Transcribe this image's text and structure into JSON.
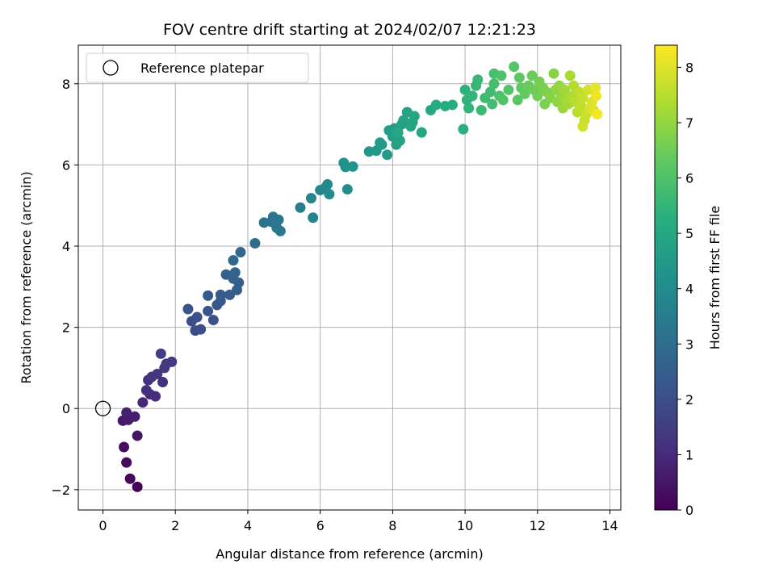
{
  "chart_data": {
    "type": "scatter",
    "title": "FOV centre drift starting at 2024/02/07 12:21:23",
    "xlabel": "Angular distance from reference (arcmin)",
    "ylabel": "Rotation from reference (arcmin)",
    "xlim": [
      -0.68,
      14.3
    ],
    "ylim": [
      -2.5,
      8.95
    ],
    "xticks": [
      0,
      2,
      4,
      6,
      8,
      10,
      12,
      14
    ],
    "yticks": [
      -2,
      0,
      2,
      4,
      6,
      8
    ],
    "xtick_labels": [
      "0",
      "2",
      "4",
      "6",
      "8",
      "10",
      "12",
      "14"
    ],
    "ytick_labels": [
      "−2",
      "0",
      "2",
      "4",
      "6",
      "8"
    ],
    "grid": true,
    "legend": {
      "placement": "top-left",
      "entries": [
        {
          "label": "Reference platepar",
          "marker": "open-circle",
          "color": "#000000"
        }
      ]
    },
    "reference_point": {
      "label": "Reference platepar",
      "x": 0.0,
      "y": 0.0
    },
    "colorbar": {
      "label": "Hours from first FF file",
      "colormap": "viridis",
      "min": 0,
      "max": 8.4,
      "ticks": [
        0,
        1,
        2,
        3,
        4,
        5,
        6,
        7,
        8
      ],
      "tick_labels": [
        "0",
        "1",
        "2",
        "3",
        "4",
        "5",
        "6",
        "7",
        "8"
      ]
    },
    "series": [
      {
        "columns": [
          "x",
          "y",
          "hours"
        ],
        "points": [
          [
            0.95,
            -1.93,
            0.05
          ],
          [
            0.75,
            -1.73,
            0.15
          ],
          [
            0.65,
            -1.33,
            0.25
          ],
          [
            0.58,
            -0.95,
            0.35
          ],
          [
            0.95,
            -0.67,
            0.45
          ],
          [
            0.55,
            -0.3,
            0.55
          ],
          [
            0.7,
            -0.28,
            0.65
          ],
          [
            0.88,
            -0.2,
            0.72
          ],
          [
            0.65,
            -0.1,
            0.8
          ],
          [
            1.1,
            0.15,
            0.9
          ],
          [
            1.3,
            0.35,
            1.0
          ],
          [
            1.45,
            0.3,
            1.05
          ],
          [
            1.2,
            0.45,
            1.1
          ],
          [
            1.65,
            0.65,
            1.15
          ],
          [
            1.25,
            0.7,
            1.2
          ],
          [
            1.35,
            0.78,
            1.25
          ],
          [
            1.5,
            0.85,
            1.3
          ],
          [
            1.7,
            1.0,
            1.35
          ],
          [
            1.75,
            1.1,
            1.4
          ],
          [
            1.9,
            1.15,
            1.45
          ],
          [
            1.6,
            1.35,
            1.5
          ],
          [
            2.55,
            1.92,
            1.9
          ],
          [
            2.7,
            1.95,
            1.95
          ],
          [
            2.45,
            2.15,
            2.0
          ],
          [
            2.6,
            2.25,
            2.05
          ],
          [
            3.05,
            2.18,
            2.1
          ],
          [
            2.35,
            2.45,
            2.15
          ],
          [
            2.9,
            2.4,
            2.2
          ],
          [
            3.15,
            2.55,
            2.25
          ],
          [
            3.25,
            2.65,
            2.3
          ],
          [
            2.9,
            2.78,
            2.35
          ],
          [
            3.25,
            2.8,
            2.4
          ],
          [
            3.5,
            2.8,
            2.45
          ],
          [
            3.7,
            2.92,
            2.5
          ],
          [
            3.75,
            3.1,
            2.55
          ],
          [
            3.4,
            3.3,
            2.6
          ],
          [
            3.6,
            3.2,
            2.65
          ],
          [
            3.65,
            3.35,
            2.7
          ],
          [
            3.6,
            3.65,
            2.75
          ],
          [
            3.8,
            3.85,
            2.85
          ],
          [
            4.2,
            4.07,
            3.0
          ],
          [
            4.45,
            4.58,
            3.15
          ],
          [
            4.65,
            4.6,
            3.2
          ],
          [
            4.7,
            4.72,
            3.25
          ],
          [
            4.85,
            4.65,
            3.3
          ],
          [
            4.8,
            4.45,
            3.35
          ],
          [
            4.9,
            4.37,
            3.4
          ],
          [
            5.45,
            4.95,
            3.6
          ],
          [
            5.8,
            4.7,
            3.7
          ],
          [
            5.75,
            5.18,
            3.75
          ],
          [
            6.0,
            5.38,
            3.8
          ],
          [
            6.15,
            5.45,
            3.85
          ],
          [
            6.2,
            5.52,
            3.9
          ],
          [
            6.25,
            5.28,
            3.95
          ],
          [
            6.75,
            5.4,
            4.1
          ],
          [
            6.65,
            6.05,
            4.2
          ],
          [
            6.7,
            5.95,
            4.25
          ],
          [
            6.9,
            5.96,
            4.3
          ],
          [
            7.35,
            6.33,
            4.4
          ],
          [
            7.55,
            6.35,
            4.45
          ],
          [
            7.7,
            6.5,
            4.5
          ],
          [
            7.65,
            6.55,
            4.55
          ],
          [
            7.85,
            6.25,
            4.6
          ],
          [
            7.9,
            6.85,
            4.65
          ],
          [
            8.0,
            6.7,
            4.7
          ],
          [
            8.05,
            6.9,
            4.72
          ],
          [
            8.1,
            6.5,
            4.75
          ],
          [
            8.2,
            6.6,
            4.78
          ],
          [
            8.25,
            7.0,
            4.8
          ],
          [
            8.3,
            7.1,
            4.82
          ],
          [
            8.4,
            7.3,
            4.85
          ],
          [
            8.5,
            6.95,
            4.88
          ],
          [
            8.6,
            7.2,
            4.9
          ],
          [
            8.55,
            7.05,
            4.92
          ],
          [
            8.15,
            6.8,
            4.95
          ],
          [
            8.8,
            6.8,
            4.98
          ],
          [
            9.05,
            7.35,
            5.1
          ],
          [
            9.2,
            7.48,
            5.15
          ],
          [
            9.45,
            7.45,
            5.2
          ],
          [
            9.65,
            7.48,
            5.25
          ],
          [
            9.95,
            6.88,
            5.3
          ],
          [
            10.0,
            7.85,
            5.35
          ],
          [
            10.05,
            7.6,
            5.4
          ],
          [
            10.1,
            7.4,
            5.45
          ],
          [
            10.2,
            7.7,
            5.5
          ],
          [
            10.3,
            7.95,
            5.55
          ],
          [
            10.35,
            8.1,
            5.6
          ],
          [
            10.45,
            7.35,
            5.65
          ],
          [
            10.55,
            7.65,
            5.7
          ],
          [
            10.7,
            7.8,
            5.75
          ],
          [
            10.75,
            7.5,
            5.8
          ],
          [
            10.8,
            8.0,
            5.85
          ],
          [
            10.8,
            8.25,
            5.9
          ],
          [
            10.95,
            7.7,
            5.95
          ],
          [
            11.0,
            8.2,
            6.0
          ],
          [
            11.05,
            7.6,
            6.05
          ],
          [
            11.2,
            7.85,
            6.1
          ],
          [
            11.35,
            8.42,
            6.15
          ],
          [
            11.45,
            7.6,
            6.2
          ],
          [
            11.5,
            8.15,
            6.25
          ],
          [
            11.55,
            7.9,
            6.3
          ],
          [
            11.65,
            7.75,
            6.35
          ],
          [
            11.75,
            7.95,
            6.4
          ],
          [
            11.85,
            8.2,
            6.45
          ],
          [
            11.9,
            7.85,
            6.5
          ],
          [
            12.0,
            7.7,
            6.55
          ],
          [
            12.05,
            8.05,
            6.6
          ],
          [
            12.15,
            7.9,
            6.65
          ],
          [
            12.2,
            7.5,
            6.7
          ],
          [
            12.25,
            7.8,
            6.75
          ],
          [
            12.35,
            7.65,
            6.8
          ],
          [
            12.45,
            8.25,
            6.85
          ],
          [
            12.5,
            7.85,
            6.9
          ],
          [
            12.55,
            7.55,
            6.95
          ],
          [
            12.6,
            7.95,
            7.0
          ],
          [
            12.65,
            7.7,
            7.05
          ],
          [
            12.7,
            7.4,
            7.1
          ],
          [
            12.75,
            7.85,
            7.15
          ],
          [
            12.8,
            7.6,
            7.2
          ],
          [
            12.85,
            7.5,
            7.25
          ],
          [
            12.9,
            8.2,
            7.3
          ],
          [
            12.95,
            7.7,
            7.35
          ],
          [
            13.0,
            7.95,
            7.4
          ],
          [
            13.05,
            7.55,
            7.45
          ],
          [
            13.1,
            7.3,
            7.5
          ],
          [
            13.15,
            7.8,
            7.55
          ],
          [
            13.2,
            7.45,
            7.6
          ],
          [
            13.25,
            7.65,
            7.65
          ],
          [
            13.3,
            7.1,
            7.7
          ],
          [
            13.35,
            7.25,
            7.75
          ],
          [
            13.25,
            6.95,
            7.8
          ],
          [
            13.4,
            7.85,
            7.85
          ],
          [
            13.45,
            7.4,
            7.9
          ],
          [
            13.5,
            7.55,
            7.95
          ],
          [
            13.55,
            7.35,
            8.0
          ],
          [
            13.6,
            7.9,
            8.1
          ],
          [
            13.62,
            7.7,
            8.2
          ],
          [
            13.65,
            7.25,
            8.3
          ]
        ]
      }
    ]
  }
}
